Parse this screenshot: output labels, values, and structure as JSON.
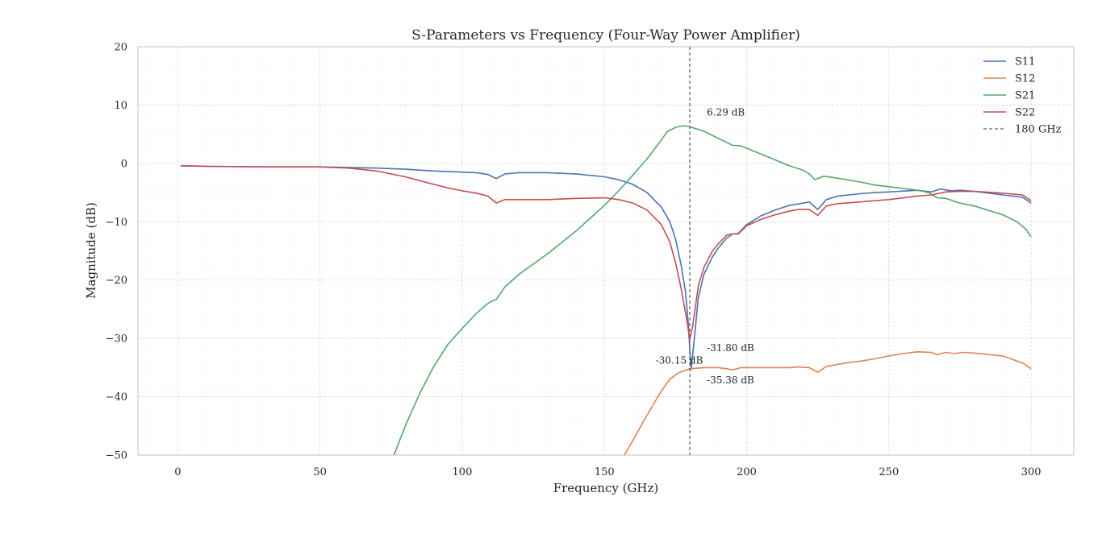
{
  "chart_data": {
    "type": "line",
    "title": "S-Parameters vs Frequency (Four-Way Power Amplifier)",
    "xlabel": "Frequency (GHz)",
    "ylabel": "Magnitude (dB)",
    "xlim": [
      -14,
      315
    ],
    "ylim": [
      -50,
      20
    ],
    "xticks": [
      0,
      50,
      100,
      150,
      200,
      250,
      300
    ],
    "yticks": [
      20,
      10,
      0,
      -10,
      -20,
      -30,
      -40,
      -50
    ],
    "ytick_labels": [
      "20",
      "10",
      "0",
      "−10",
      "−20",
      "−30",
      "−40",
      "−50"
    ],
    "grid": true,
    "legend_position": "top-right",
    "series": [
      {
        "name": "S11",
        "color": "#4c72b0",
        "points": [
          [
            1,
            -0.4
          ],
          [
            10,
            -0.5
          ],
          [
            30,
            -0.6
          ],
          [
            50,
            -0.6
          ],
          [
            70,
            -0.8
          ],
          [
            80,
            -1.0
          ],
          [
            90,
            -1.3
          ],
          [
            100,
            -1.5
          ],
          [
            105,
            -1.6
          ],
          [
            109,
            -1.9
          ],
          [
            112,
            -2.6
          ],
          [
            115,
            -1.8
          ],
          [
            120,
            -1.6
          ],
          [
            130,
            -1.6
          ],
          [
            140,
            -1.8
          ],
          [
            150,
            -2.3
          ],
          [
            155,
            -2.8
          ],
          [
            160,
            -3.6
          ],
          [
            165,
            -5.0
          ],
          [
            170,
            -7.5
          ],
          [
            173,
            -10.0
          ],
          [
            175,
            -13.0
          ],
          [
            177,
            -17.5
          ],
          [
            178.5,
            -22.0
          ],
          [
            179.5,
            -27.5
          ],
          [
            180,
            -31.8
          ],
          [
            180.5,
            -35.38
          ],
          [
            181,
            -33.0
          ],
          [
            182,
            -28.0
          ],
          [
            183,
            -23.0
          ],
          [
            185,
            -19.0
          ],
          [
            188,
            -16.0
          ],
          [
            190,
            -14.5
          ],
          [
            193,
            -12.8
          ],
          [
            195,
            -12.1
          ],
          [
            197,
            -12.0
          ],
          [
            200,
            -10.5
          ],
          [
            205,
            -9.0
          ],
          [
            210,
            -8.0
          ],
          [
            215,
            -7.2
          ],
          [
            220,
            -6.8
          ],
          [
            222,
            -6.6
          ],
          [
            225,
            -7.9
          ],
          [
            228,
            -6.2
          ],
          [
            232,
            -5.6
          ],
          [
            240,
            -5.2
          ],
          [
            245,
            -5.0
          ],
          [
            250,
            -4.9
          ],
          [
            260,
            -4.6
          ],
          [
            265,
            -4.9
          ],
          [
            268,
            -4.4
          ],
          [
            272,
            -4.7
          ],
          [
            275,
            -4.6
          ],
          [
            280,
            -4.8
          ],
          [
            290,
            -5.4
          ],
          [
            297,
            -5.8
          ],
          [
            300,
            -6.8
          ]
        ]
      },
      {
        "name": "S12",
        "color": "#dd8452",
        "points": [
          [
            157,
            -50.0
          ],
          [
            160,
            -47.5
          ],
          [
            164,
            -44.0
          ],
          [
            167,
            -41.5
          ],
          [
            170,
            -39.0
          ],
          [
            173,
            -37.0
          ],
          [
            176,
            -35.9
          ],
          [
            180,
            -35.2
          ],
          [
            185,
            -35.0
          ],
          [
            190,
            -35.0
          ],
          [
            193,
            -35.2
          ],
          [
            195,
            -35.4
          ],
          [
            198,
            -35.0
          ],
          [
            205,
            -35.0
          ],
          [
            215,
            -35.0
          ],
          [
            218,
            -34.9
          ],
          [
            222,
            -35.0
          ],
          [
            225,
            -35.8
          ],
          [
            228,
            -34.8
          ],
          [
            235,
            -34.2
          ],
          [
            240,
            -33.9
          ],
          [
            245,
            -33.5
          ],
          [
            250,
            -33.0
          ],
          [
            255,
            -32.6
          ],
          [
            260,
            -32.3
          ],
          [
            265,
            -32.4
          ],
          [
            267,
            -32.8
          ],
          [
            270,
            -32.4
          ],
          [
            273,
            -32.6
          ],
          [
            276,
            -32.4
          ],
          [
            280,
            -32.5
          ],
          [
            290,
            -33.0
          ],
          [
            297,
            -34.2
          ],
          [
            300,
            -35.2
          ]
        ]
      },
      {
        "name": "S21",
        "color": "#55a868",
        "points": [
          [
            76,
            -50.0
          ],
          [
            80,
            -45.0
          ],
          [
            85,
            -39.5
          ],
          [
            90,
            -34.8
          ],
          [
            95,
            -31.0
          ],
          [
            100,
            -28.3
          ],
          [
            105,
            -25.7
          ],
          [
            108,
            -24.4
          ],
          [
            110,
            -23.7
          ],
          [
            112,
            -23.3
          ],
          [
            115,
            -21.2
          ],
          [
            120,
            -19.0
          ],
          [
            130,
            -15.5
          ],
          [
            140,
            -11.6
          ],
          [
            150,
            -7.2
          ],
          [
            155,
            -4.7
          ],
          [
            160,
            -2.0
          ],
          [
            165,
            0.8
          ],
          [
            170,
            4.0
          ],
          [
            172,
            5.4
          ],
          [
            175,
            6.2
          ],
          [
            178,
            6.45
          ],
          [
            180,
            6.29
          ],
          [
            185,
            5.5
          ],
          [
            190,
            4.3
          ],
          [
            195,
            3.1
          ],
          [
            198,
            3.0
          ],
          [
            200,
            2.6
          ],
          [
            205,
            1.6
          ],
          [
            210,
            0.6
          ],
          [
            215,
            -0.4
          ],
          [
            220,
            -1.2
          ],
          [
            222,
            -1.8
          ],
          [
            224,
            -2.8
          ],
          [
            227,
            -2.2
          ],
          [
            230,
            -2.4
          ],
          [
            240,
            -3.2
          ],
          [
            245,
            -3.7
          ],
          [
            250,
            -4.0
          ],
          [
            260,
            -4.6
          ],
          [
            264,
            -5.0
          ],
          [
            267,
            -5.9
          ],
          [
            270,
            -6.0
          ],
          [
            275,
            -6.8
          ],
          [
            280,
            -7.3
          ],
          [
            290,
            -8.8
          ],
          [
            295,
            -10.0
          ],
          [
            298,
            -11.2
          ],
          [
            300,
            -12.6
          ]
        ]
      },
      {
        "name": "S22",
        "color": "#c44e52",
        "points": [
          [
            1,
            -0.4
          ],
          [
            10,
            -0.5
          ],
          [
            30,
            -0.6
          ],
          [
            50,
            -0.6
          ],
          [
            60,
            -0.8
          ],
          [
            70,
            -1.3
          ],
          [
            80,
            -2.3
          ],
          [
            90,
            -3.6
          ],
          [
            95,
            -4.2
          ],
          [
            100,
            -4.7
          ],
          [
            105,
            -5.1
          ],
          [
            109,
            -5.6
          ],
          [
            112,
            -6.8
          ],
          [
            115,
            -6.2
          ],
          [
            120,
            -6.2
          ],
          [
            130,
            -6.2
          ],
          [
            140,
            -6.0
          ],
          [
            150,
            -5.9
          ],
          [
            155,
            -6.2
          ],
          [
            160,
            -6.8
          ],
          [
            165,
            -8.0
          ],
          [
            170,
            -10.5
          ],
          [
            173,
            -13.5
          ],
          [
            175,
            -17.0
          ],
          [
            177,
            -21.5
          ],
          [
            179,
            -27.0
          ],
          [
            180,
            -30.15
          ],
          [
            181,
            -28.0
          ],
          [
            182,
            -24.5
          ],
          [
            183,
            -21.0
          ],
          [
            185,
            -17.8
          ],
          [
            188,
            -15.0
          ],
          [
            190,
            -13.8
          ],
          [
            193,
            -12.3
          ],
          [
            195,
            -12.1
          ],
          [
            197,
            -12.1
          ],
          [
            200,
            -10.7
          ],
          [
            205,
            -9.6
          ],
          [
            210,
            -8.8
          ],
          [
            215,
            -8.2
          ],
          [
            218,
            -7.9
          ],
          [
            222,
            -7.9
          ],
          [
            225,
            -8.9
          ],
          [
            228,
            -7.3
          ],
          [
            232,
            -6.9
          ],
          [
            240,
            -6.6
          ],
          [
            245,
            -6.4
          ],
          [
            250,
            -6.2
          ],
          [
            260,
            -5.6
          ],
          [
            265,
            -5.4
          ],
          [
            270,
            -4.9
          ],
          [
            275,
            -4.8
          ],
          [
            280,
            -4.8
          ],
          [
            290,
            -5.1
          ],
          [
            297,
            -5.4
          ],
          [
            300,
            -6.4
          ]
        ]
      },
      {
        "name": "180 GHz",
        "color": "#666666",
        "dashed": true,
        "vline_x": 180
      }
    ],
    "annotations": [
      {
        "text": "6.29 dB",
        "x": 186,
        "y": 8.2
      },
      {
        "text": "-31.80 dB",
        "x": 186,
        "y": -32.2
      },
      {
        "text": "-30.15 dB",
        "x": 168,
        "y": -34.3
      },
      {
        "text": "-35.38 dB",
        "x": 186,
        "y": -37.7
      }
    ]
  }
}
